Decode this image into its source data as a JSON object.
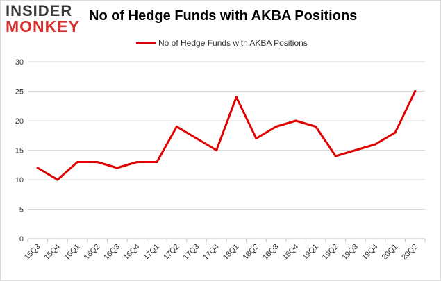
{
  "brand": {
    "logo_top": "INSIDER",
    "logo_bottom": "MONKEY"
  },
  "colors": {
    "series": "#e00000",
    "grid": "#d9d9d9",
    "axis_text": "#333333"
  },
  "chart_data": {
    "type": "line",
    "title": "No of Hedge Funds with AKBA Positions",
    "xlabel": "",
    "ylabel": "",
    "legend_position": "top",
    "grid": true,
    "categories": [
      "15Q3",
      "15Q4",
      "16Q1",
      "16Q2",
      "16Q3",
      "16Q4",
      "17Q1",
      "17Q2",
      "17Q3",
      "17Q4",
      "18Q1",
      "18Q2",
      "18Q3",
      "18Q4",
      "19Q1",
      "19Q2",
      "19Q3",
      "19Q4",
      "20Q1",
      "20Q2"
    ],
    "ylim": [
      0,
      30
    ],
    "yticks": [
      0,
      5,
      10,
      15,
      20,
      25,
      30
    ],
    "series": [
      {
        "name": "No of Hedge Funds with AKBA Positions",
        "values": [
          12,
          10,
          13,
          13,
          12,
          13,
          13,
          19,
          17,
          15,
          24,
          17,
          19,
          20,
          19,
          14,
          15,
          16,
          18,
          25
        ]
      }
    ]
  }
}
